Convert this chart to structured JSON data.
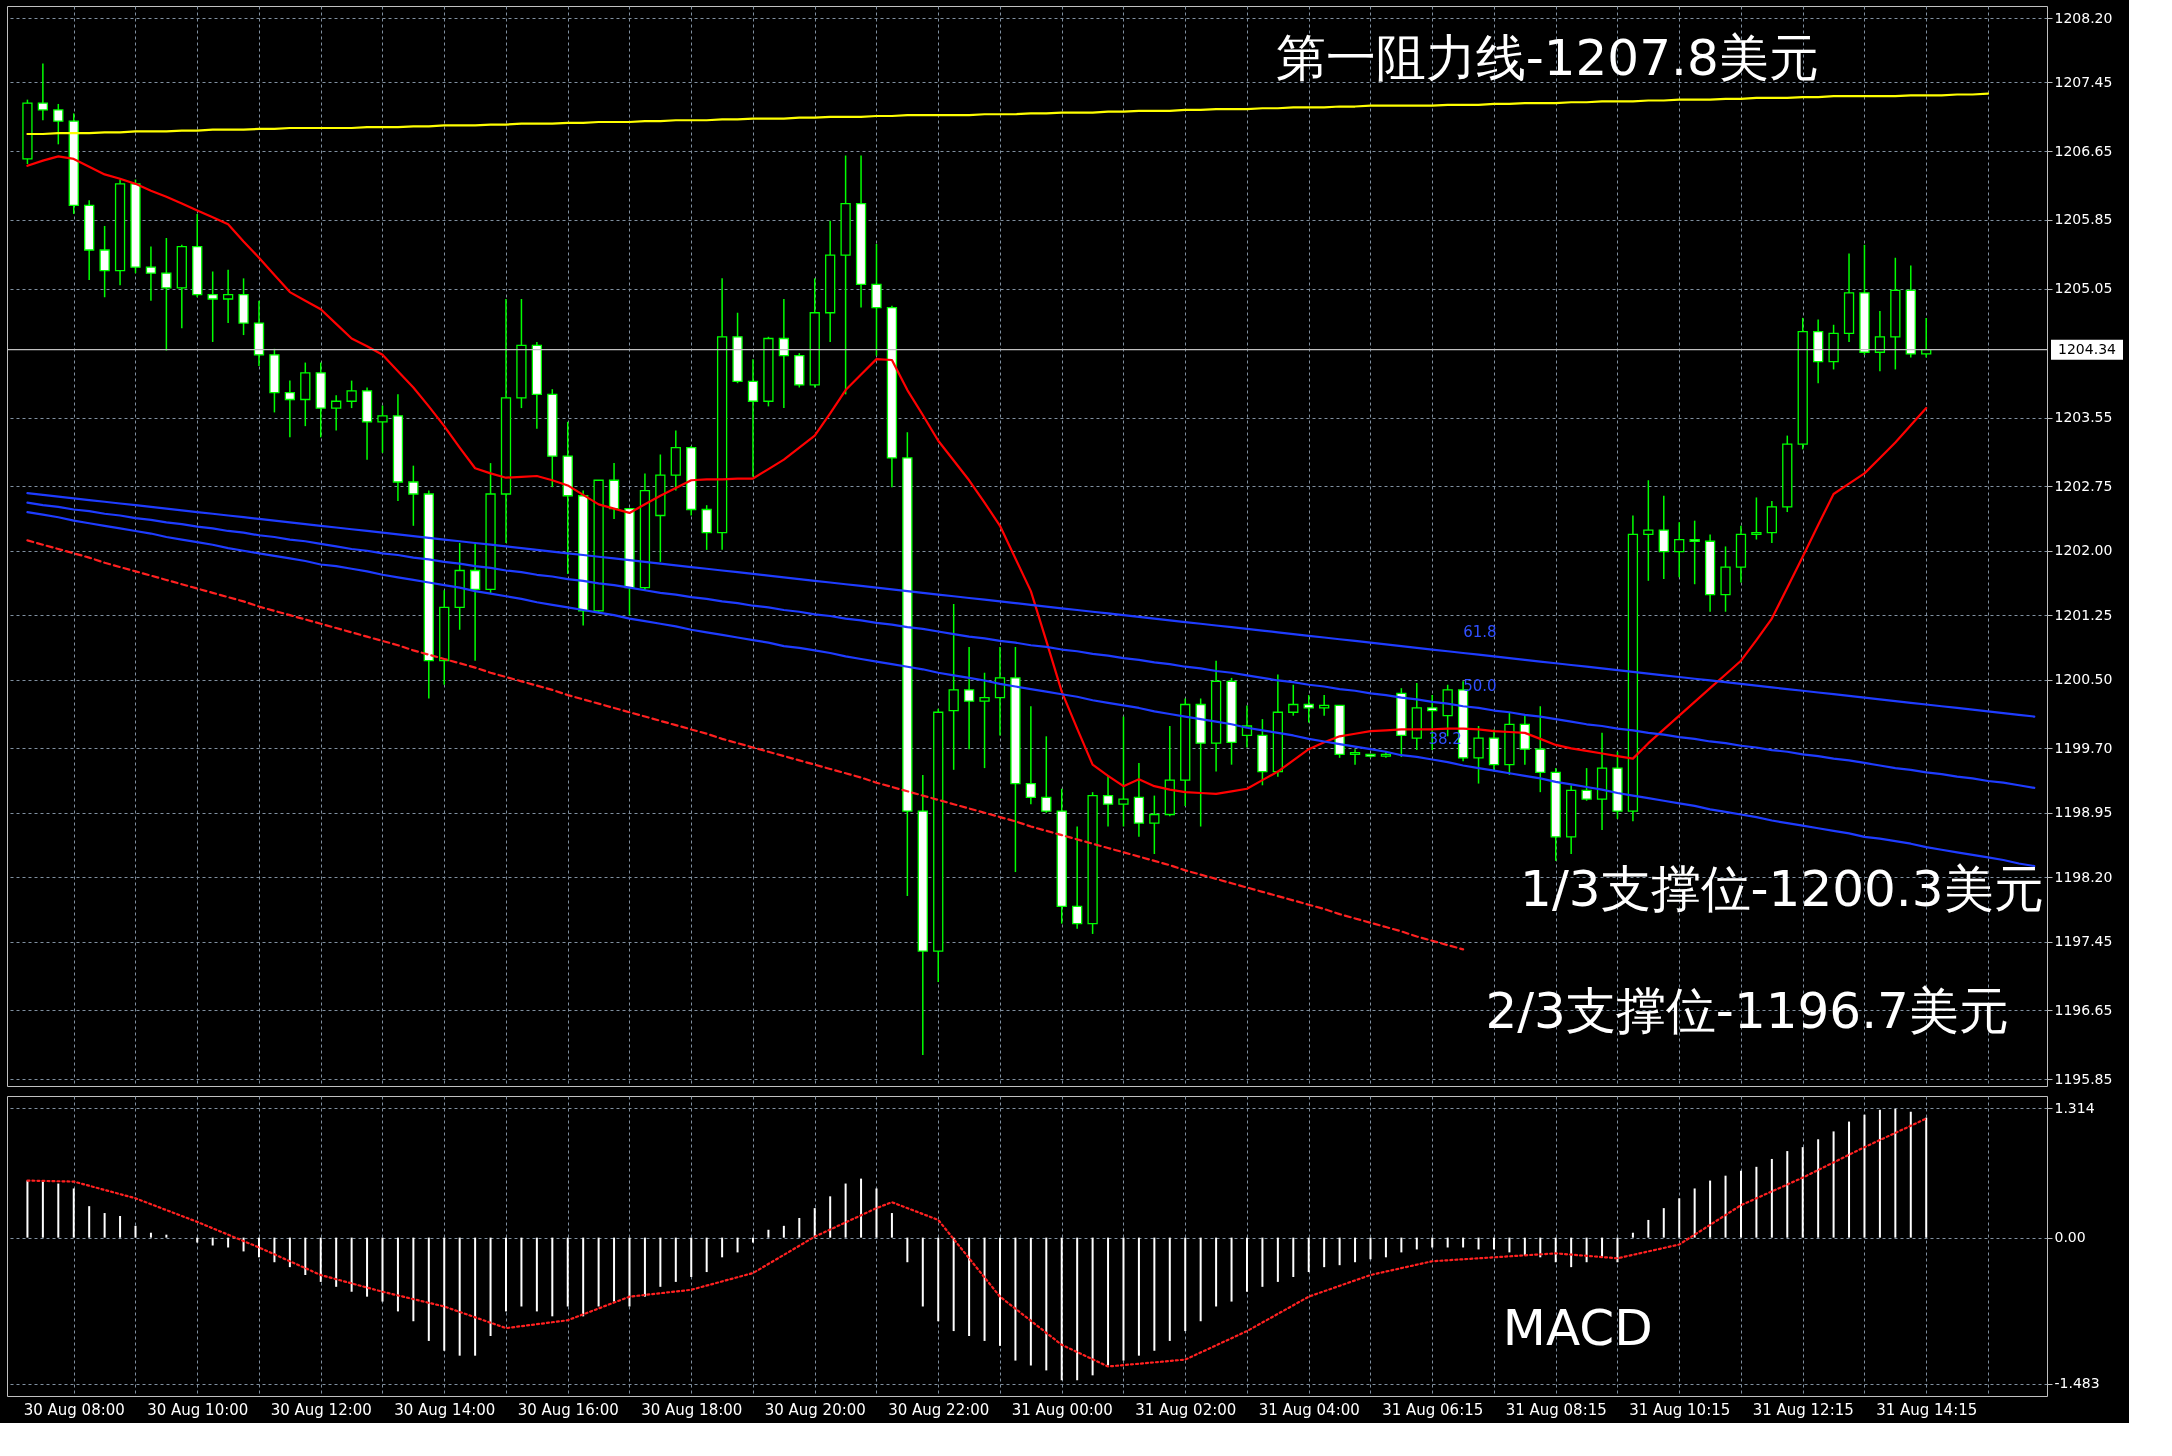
{
  "chart_data": [
    {
      "type": "candlestick",
      "categories": [
        null,
        null,
        null,
        null,
        null,
        null,
        null,
        null,
        null,
        null,
        null,
        null,
        null,
        null,
        null,
        null,
        null,
        null,
        null,
        null,
        null,
        null,
        null,
        null,
        null,
        null,
        null,
        null,
        null,
        null,
        null,
        null,
        null,
        null,
        null,
        null,
        null,
        null,
        null,
        null,
        null,
        null,
        null,
        null,
        null,
        null,
        null,
        null,
        null,
        null,
        null,
        null,
        null,
        null,
        null,
        null,
        null,
        null,
        null,
        null,
        null,
        null,
        null,
        null,
        null,
        null,
        null,
        null,
        null,
        null,
        null,
        null,
        null,
        null,
        null,
        null,
        null,
        null,
        null,
        null,
        null,
        null,
        null,
        null,
        null,
        null,
        null,
        null,
        null,
        null,
        null,
        null,
        null,
        null,
        null,
        null,
        null,
        null,
        null,
        null,
        null,
        null,
        null,
        null,
        null,
        null,
        null,
        null,
        null,
        null,
        null,
        null,
        null,
        null,
        null,
        null,
        null,
        null,
        null,
        null,
        null,
        null,
        null,
        null,
        null,
        null,
        null,
        null,
        null,
        null,
        null
      ],
      "ohlc": [
        [
          1206.56,
          1207.25,
          1206.5,
          1207.21
        ],
        [
          1207.21,
          1207.67,
          1207.01,
          1207.13
        ],
        [
          1207.13,
          1207.2,
          1206.73,
          1207.0
        ],
        [
          1207.0,
          1207.09,
          1205.92,
          1206.02
        ],
        [
          1206.02,
          1206.08,
          1205.15,
          1205.5
        ],
        [
          1205.5,
          1205.78,
          1204.95,
          1205.26
        ],
        [
          1205.26,
          1206.32,
          1205.09,
          1206.27
        ],
        [
          1206.27,
          1206.32,
          1205.23,
          1205.3
        ],
        [
          1205.3,
          1205.54,
          1204.91,
          1205.23
        ],
        [
          1205.23,
          1205.64,
          1204.33,
          1205.06
        ],
        [
          1205.06,
          1205.56,
          1204.59,
          1205.54
        ],
        [
          1205.54,
          1205.92,
          1204.95,
          1204.98
        ],
        [
          1204.98,
          1205.25,
          1204.43,
          1204.93
        ],
        [
          1204.93,
          1205.27,
          1204.65,
          1204.98
        ],
        [
          1204.98,
          1205.17,
          1204.51,
          1204.65
        ],
        [
          1204.65,
          1204.91,
          1204.15,
          1204.28
        ],
        [
          1204.28,
          1204.35,
          1203.61,
          1203.84
        ],
        [
          1203.84,
          1203.98,
          1203.32,
          1203.76
        ],
        [
          1203.76,
          1204.19,
          1203.45,
          1204.07
        ],
        [
          1204.07,
          1204.19,
          1203.32,
          1203.66
        ],
        [
          1203.66,
          1203.81,
          1203.4,
          1203.74
        ],
        [
          1203.74,
          1203.98,
          1203.66,
          1203.86
        ],
        [
          1203.86,
          1203.9,
          1203.06,
          1203.5
        ],
        [
          1203.5,
          1203.69,
          1203.14,
          1203.57
        ],
        [
          1203.57,
          1203.82,
          1202.58,
          1202.8
        ],
        [
          1202.8,
          1202.99,
          1202.29,
          1202.66
        ],
        [
          1202.66,
          1202.7,
          1200.28,
          1200.72
        ],
        [
          1200.72,
          1201.54,
          1200.44,
          1201.34
        ],
        [
          1201.34,
          1202.09,
          1201.08,
          1201.77
        ],
        [
          1201.77,
          1202.08,
          1200.72,
          1201.55
        ],
        [
          1201.55,
          1203.02,
          1201.5,
          1202.66
        ],
        [
          1202.66,
          1204.93,
          1202.09,
          1203.78
        ],
        [
          1203.78,
          1204.93,
          1203.66,
          1204.39
        ],
        [
          1204.39,
          1204.43,
          1203.42,
          1203.82
        ],
        [
          1203.82,
          1203.88,
          1202.74,
          1203.1
        ],
        [
          1203.1,
          1203.5,
          1201.73,
          1202.64
        ],
        [
          1202.64,
          1202.7,
          1201.13,
          1201.3
        ],
        [
          1201.3,
          1202.82,
          1201.28,
          1202.82
        ],
        [
          1202.82,
          1203.02,
          1202.37,
          1202.49
        ],
        [
          1202.49,
          1202.49,
          1201.25,
          1201.57
        ],
        [
          1201.57,
          1202.9,
          1201.53,
          1202.7
        ],
        [
          1202.41,
          1203.12,
          1201.87,
          1202.88
        ],
        [
          1202.88,
          1203.4,
          1202.7,
          1203.2
        ],
        [
          1203.2,
          1203.22,
          1202.41,
          1202.48
        ],
        [
          1202.48,
          1202.53,
          1202.01,
          1202.21
        ],
        [
          1202.21,
          1205.17,
          1202.01,
          1204.49
        ],
        [
          1204.49,
          1204.77,
          1203.95,
          1203.97
        ],
        [
          1203.97,
          1204.23,
          1202.86,
          1203.74
        ],
        [
          1203.74,
          1204.49,
          1203.68,
          1204.47
        ],
        [
          1204.47,
          1204.93,
          1203.66,
          1204.27
        ],
        [
          1204.27,
          1204.3,
          1203.9,
          1203.93
        ],
        [
          1203.93,
          1205.17,
          1203.9,
          1204.77
        ],
        [
          1204.77,
          1205.84,
          1204.43,
          1205.44
        ],
        [
          1205.44,
          1206.6,
          1203.82,
          1206.04
        ],
        [
          1206.04,
          1206.6,
          1204.83,
          1205.1
        ],
        [
          1205.1,
          1205.57,
          1204.27,
          1204.83
        ],
        [
          1204.83,
          1204.85,
          1202.74,
          1203.08
        ],
        [
          1203.08,
          1203.38,
          1197.98,
          1198.97
        ],
        [
          1198.97,
          1199.39,
          1196.13,
          1197.34
        ],
        [
          1197.34,
          1200.16,
          1196.98,
          1200.12
        ],
        [
          1200.14,
          1201.38,
          1199.45,
          1200.38
        ],
        [
          1200.38,
          1200.88,
          1199.69,
          1200.25
        ],
        [
          1200.25,
          1200.58,
          1199.47,
          1200.29
        ],
        [
          1200.29,
          1200.88,
          1199.85,
          1200.52
        ],
        [
          1200.52,
          1200.88,
          1198.26,
          1199.29
        ],
        [
          1199.29,
          1200.19,
          1199.05,
          1199.13
        ],
        [
          1199.13,
          1199.84,
          1198.95,
          1198.97
        ],
        [
          1198.97,
          1199.23,
          1197.66,
          1197.86
        ],
        [
          1197.86,
          1198.79,
          1197.6,
          1197.66
        ],
        [
          1197.66,
          1199.19,
          1197.54,
          1199.15
        ],
        [
          1199.15,
          1199.39,
          1198.79,
          1199.05
        ],
        [
          1199.05,
          1200.07,
          1198.79,
          1199.11
        ],
        [
          1199.13,
          1199.53,
          1198.67,
          1198.83
        ],
        [
          1198.83,
          1199.15,
          1198.47,
          1198.93
        ],
        [
          1198.93,
          1199.96,
          1198.91,
          1199.33
        ],
        [
          1199.33,
          1200.28,
          1199.03,
          1200.21
        ],
        [
          1200.21,
          1200.28,
          1198.79,
          1199.76
        ],
        [
          1199.76,
          1200.72,
          1199.43,
          1200.48
        ],
        [
          1200.48,
          1200.52,
          1199.51,
          1199.77
        ],
        [
          1199.85,
          1200.2,
          1199.71,
          1199.96
        ],
        [
          1199.85,
          1200.04,
          1199.27,
          1199.43
        ],
        [
          1199.43,
          1200.56,
          1199.37,
          1200.12
        ],
        [
          1200.12,
          1200.44,
          1200.08,
          1200.21
        ],
        [
          1200.21,
          1200.32,
          1200.0,
          1200.17
        ],
        [
          1200.17,
          1200.32,
          1200.08,
          1200.2
        ],
        [
          1200.2,
          1200.2,
          1199.59,
          1199.63
        ],
        [
          1199.63,
          1199.69,
          1199.51,
          1199.65
        ],
        [
          1199.63,
          1199.63,
          1199.59,
          1199.61
        ],
        [
          1199.61,
          1199.66,
          1199.59,
          1199.63
        ],
        [
          1200.34,
          1200.4,
          1199.6,
          1199.85
        ],
        [
          1199.82,
          1200.46,
          1199.68,
          1200.17
        ],
        [
          1200.17,
          1200.32,
          1199.68,
          1200.14
        ],
        [
          1200.08,
          1200.44,
          1199.84,
          1200.38
        ],
        [
          1200.38,
          1200.48,
          1199.55,
          1199.59
        ],
        [
          1199.59,
          1199.96,
          1199.29,
          1199.82
        ],
        [
          1199.82,
          1199.92,
          1199.43,
          1199.51
        ],
        [
          1199.51,
          1200.12,
          1199.39,
          1199.98
        ],
        [
          1199.98,
          1200.09,
          1199.51,
          1199.69
        ],
        [
          1199.69,
          1200.19,
          1199.19,
          1199.42
        ],
        [
          1199.42,
          1199.47,
          1198.39,
          1198.67
        ],
        [
          1198.67,
          1199.27,
          1198.47,
          1199.21
        ],
        [
          1199.21,
          1199.47,
          1199.09,
          1199.11
        ],
        [
          1199.11,
          1199.88,
          1198.75,
          1199.47
        ],
        [
          1199.47,
          1199.66,
          1198.88,
          1198.97
        ],
        [
          1198.97,
          1202.41,
          1198.85,
          1202.19
        ],
        [
          1202.19,
          1202.82,
          1201.65,
          1202.24
        ],
        [
          1202.24,
          1202.64,
          1201.67,
          1201.99
        ],
        [
          1201.99,
          1202.33,
          1201.69,
          1202.13
        ],
        [
          1202.13,
          1202.35,
          1201.61,
          1202.11
        ],
        [
          1202.11,
          1202.19,
          1201.29,
          1201.49
        ],
        [
          1201.49,
          1202.05,
          1201.29,
          1201.81
        ],
        [
          1201.81,
          1202.29,
          1201.63,
          1202.19
        ],
        [
          1202.19,
          1202.62,
          1202.13,
          1202.21
        ],
        [
          1202.21,
          1202.58,
          1202.09,
          1202.51
        ],
        [
          1202.51,
          1203.34,
          1202.45,
          1203.24
        ],
        [
          1203.24,
          1204.71,
          1203.18,
          1204.55
        ],
        [
          1204.55,
          1204.69,
          1203.95,
          1204.2
        ],
        [
          1204.2,
          1204.63,
          1204.11,
          1204.53
        ],
        [
          1204.53,
          1205.46,
          1204.43,
          1205.0
        ],
        [
          1205.0,
          1205.56,
          1204.28,
          1204.31
        ],
        [
          1204.31,
          1204.79,
          1204.09,
          1204.49
        ],
        [
          1204.49,
          1205.41,
          1204.11,
          1205.03
        ],
        [
          1205.03,
          1205.32,
          1204.25,
          1204.29
        ],
        [
          1204.29,
          1204.71,
          1204.25,
          1204.34
        ],
        null,
        null,
        null,
        null,
        null,
        null,
        null
      ],
      "series": [
        {
          "type": "line",
          "color": "#ff0000",
          "values": [
            1206.48,
            1206.54,
            1206.59,
            1206.56,
            1206.47,
            1206.38,
            1206.33,
            1206.27,
            1206.19,
            1206.12,
            1206.04,
            1205.96,
            1205.88,
            1205.8,
            1205.6,
            1205.41,
            1205.21,
            1205.01,
            1204.91,
            1204.81,
            1204.64,
            1204.47,
            1204.38,
            1204.28,
            1204.09,
            1203.9,
            1203.68,
            1203.45,
            1203.2,
            1202.96,
            1202.9,
            1202.85,
            1202.86,
            1202.87,
            1202.82,
            1202.76,
            1202.65,
            1202.54,
            1202.49,
            1202.44,
            1202.54,
            1202.64,
            1202.73,
            1202.82,
            1202.83,
            1202.83,
            1202.84,
            1202.84,
            1202.95,
            1203.06,
            1203.2,
            1203.34,
            1203.6,
            1203.87,
            1204.05,
            1204.23,
            1204.22,
            1203.87,
            1203.58,
            1203.28,
            1203.05,
            1202.82,
            1202.56,
            1202.29,
            1201.91,
            1201.53,
            1200.95,
            1200.36,
            1199.93,
            1199.51,
            1199.38,
            1199.26,
            1199.34,
            1199.26,
            1199.22,
            1199.19,
            1199.18,
            1199.17,
            1199.2,
            1199.23,
            1199.33,
            1199.43,
            1199.56,
            1199.69,
            1199.77,
            1199.84,
            1199.87,
            1199.9,
            1199.91,
            1199.92,
            1199.92,
            1199.92,
            1199.93,
            1199.93,
            1199.92,
            1199.9,
            1199.89,
            1199.88,
            1199.81,
            1199.74,
            1199.7,
            1199.67,
            1199.64,
            1199.61,
            1199.58,
            1199.76,
            1199.92,
            1200.08,
            1200.24,
            1200.4,
            1200.56,
            1200.72,
            1200.96,
            1201.21,
            1201.57,
            1201.93,
            1202.3,
            1202.66,
            1202.78,
            1202.9,
            1203.08,
            1203.26,
            1203.46,
            1203.66,
            null,
            null,
            null,
            null,
            null,
            null,
            null
          ]
        },
        {
          "type": "line",
          "color": "#ffff00",
          "values": [
            1206.85,
            1206.85,
            1206.86,
            1206.86,
            1206.86,
            1206.87,
            1206.87,
            1206.88,
            1206.88,
            1206.88,
            1206.89,
            1206.89,
            1206.9,
            1206.9,
            1206.9,
            1206.91,
            1206.91,
            1206.92,
            1206.92,
            1206.92,
            1206.92,
            1206.92,
            1206.93,
            1206.93,
            1206.93,
            1206.94,
            1206.94,
            1206.95,
            1206.95,
            1206.95,
            1206.96,
            1206.96,
            1206.97,
            1206.97,
            1206.97,
            1206.98,
            1206.98,
            1206.99,
            1206.99,
            1206.99,
            1207.0,
            1207.0,
            1207.01,
            1207.01,
            1207.01,
            1207.02,
            1207.02,
            1207.03,
            1207.03,
            1207.03,
            1207.04,
            1207.04,
            1207.05,
            1207.05,
            1207.05,
            1207.06,
            1207.06,
            1207.07,
            1207.07,
            1207.07,
            1207.07,
            1207.07,
            1207.08,
            1207.08,
            1207.08,
            1207.09,
            1207.09,
            1207.1,
            1207.1,
            1207.1,
            1207.11,
            1207.11,
            1207.12,
            1207.12,
            1207.12,
            1207.13,
            1207.13,
            1207.14,
            1207.14,
            1207.14,
            1207.15,
            1207.15,
            1207.16,
            1207.16,
            1207.16,
            1207.17,
            1207.17,
            1207.18,
            1207.18,
            1207.18,
            1207.18,
            1207.18,
            1207.19,
            1207.19,
            1207.19,
            1207.2,
            1207.2,
            1207.21,
            1207.21,
            1207.21,
            1207.22,
            1207.22,
            1207.23,
            1207.23,
            1207.23,
            1207.24,
            1207.24,
            1207.25,
            1207.25,
            1207.25,
            1207.26,
            1207.26,
            1207.27,
            1207.27,
            1207.27,
            1207.28,
            1207.28,
            1207.29,
            1207.29,
            1207.29,
            1207.29,
            1207.29,
            1207.3,
            1207.3,
            1207.3,
            1207.31,
            1207.31,
            1207.32,
            null,
            null,
            null
          ]
        },
        {
          "type": "line",
          "color": "#1e3cff",
          "values": [
            1202.67,
            1202.65,
            1202.63,
            1202.61,
            1202.59,
            1202.57,
            1202.55,
            1202.53,
            1202.51,
            1202.49,
            1202.47,
            1202.45,
            1202.43,
            1202.41,
            1202.39,
            1202.37,
            1202.35,
            1202.33,
            1202.31,
            1202.29,
            1202.27,
            1202.25,
            1202.23,
            1202.21,
            1202.19,
            1202.17,
            1202.15,
            1202.13,
            1202.11,
            1202.09,
            1202.07,
            1202.05,
            1202.03,
            1202.01,
            1201.99,
            1201.97,
            1201.95,
            1201.93,
            1201.91,
            1201.89,
            1201.87,
            1201.85,
            1201.83,
            1201.81,
            1201.79,
            1201.77,
            1201.75,
            1201.73,
            1201.71,
            1201.69,
            1201.67,
            1201.65,
            1201.63,
            1201.61,
            1201.59,
            1201.57,
            1201.55,
            1201.53,
            1201.51,
            1201.49,
            1201.47,
            1201.45,
            1201.43,
            1201.41,
            1201.39,
            1201.37,
            1201.35,
            1201.33,
            1201.31,
            1201.29,
            1201.27,
            1201.25,
            1201.23,
            1201.21,
            1201.19,
            1201.17,
            1201.15,
            1201.13,
            1201.11,
            1201.09,
            1201.07,
            1201.05,
            1201.03,
            1201.01,
            1200.99,
            1200.97,
            1200.95,
            1200.93,
            1200.91,
            1200.89,
            1200.87,
            1200.85,
            1200.83,
            1200.81,
            1200.79,
            1200.77,
            1200.75,
            1200.73,
            1200.71,
            1200.69,
            1200.67,
            1200.65,
            1200.63,
            1200.61,
            1200.59,
            1200.57,
            1200.55,
            1200.53,
            1200.51,
            1200.49,
            1200.47,
            1200.45,
            1200.43,
            1200.41,
            1200.39,
            1200.37,
            1200.35,
            1200.33,
            1200.31,
            1200.29,
            1200.27,
            1200.25,
            1200.23,
            1200.21,
            1200.19,
            1200.17,
            1200.15,
            1200.13,
            1200.11,
            1200.09,
            1200.07
          ]
        },
        {
          "type": "line",
          "color": "#1e3cff",
          "values": [
            1202.56,
            1202.53,
            1202.51,
            1202.48,
            1202.46,
            1202.43,
            1202.41,
            1202.38,
            1202.36,
            1202.33,
            1202.31,
            1202.28,
            1202.26,
            1202.23,
            1202.21,
            1202.18,
            1202.16,
            1202.13,
            1202.11,
            1202.08,
            1202.05,
            1202.02,
            1202.0,
            1201.97,
            1201.95,
            1201.92,
            1201.9,
            1201.87,
            1201.85,
            1201.82,
            1201.8,
            1201.77,
            1201.75,
            1201.72,
            1201.7,
            1201.67,
            1201.65,
            1201.62,
            1201.6,
            1201.57,
            1201.54,
            1201.51,
            1201.49,
            1201.46,
            1201.44,
            1201.41,
            1201.39,
            1201.36,
            1201.34,
            1201.31,
            1201.29,
            1201.26,
            1201.24,
            1201.21,
            1201.19,
            1201.16,
            1201.14,
            1201.11,
            1201.09,
            1201.06,
            1201.03,
            1201.0,
            1200.98,
            1200.95,
            1200.93,
            1200.9,
            1200.88,
            1200.85,
            1200.83,
            1200.8,
            1200.78,
            1200.75,
            1200.73,
            1200.7,
            1200.68,
            1200.65,
            1200.63,
            1200.6,
            1200.58,
            1200.55,
            1200.52,
            1200.49,
            1200.47,
            1200.44,
            1200.42,
            1200.39,
            1200.37,
            1200.34,
            1200.32,
            1200.29,
            1200.27,
            1200.24,
            1200.22,
            1200.19,
            1200.17,
            1200.14,
            1200.12,
            1200.09,
            1200.07,
            1200.04,
            1200.01,
            1199.98,
            1199.96,
            1199.93,
            1199.91,
            1199.88,
            1199.86,
            1199.83,
            1199.81,
            1199.78,
            1199.76,
            1199.73,
            1199.71,
            1199.68,
            1199.66,
            1199.63,
            1199.61,
            1199.58,
            1199.56,
            1199.53,
            1199.5,
            1199.47,
            1199.45,
            1199.42,
            1199.4,
            1199.37,
            1199.35,
            1199.32,
            1199.3,
            1199.27,
            1199.24
          ]
        },
        {
          "type": "line",
          "color": "#1e3cff",
          "values": [
            1202.45,
            1202.42,
            1202.39,
            1202.35,
            1202.32,
            1202.29,
            1202.26,
            1202.23,
            1202.2,
            1202.16,
            1202.13,
            1202.1,
            1202.07,
            1202.03,
            1202.0,
            1201.97,
            1201.94,
            1201.91,
            1201.88,
            1201.84,
            1201.82,
            1201.79,
            1201.76,
            1201.72,
            1201.69,
            1201.66,
            1201.63,
            1201.6,
            1201.57,
            1201.53,
            1201.5,
            1201.47,
            1201.44,
            1201.4,
            1201.37,
            1201.34,
            1201.31,
            1201.28,
            1201.25,
            1201.21,
            1201.18,
            1201.15,
            1201.12,
            1201.08,
            1201.05,
            1201.02,
            1200.99,
            1200.96,
            1200.93,
            1200.89,
            1200.87,
            1200.84,
            1200.81,
            1200.77,
            1200.74,
            1200.71,
            1200.68,
            1200.65,
            1200.62,
            1200.58,
            1200.55,
            1200.52,
            1200.49,
            1200.45,
            1200.42,
            1200.39,
            1200.36,
            1200.33,
            1200.3,
            1200.26,
            1200.23,
            1200.2,
            1200.17,
            1200.13,
            1200.1,
            1200.07,
            1200.04,
            1200.01,
            1199.98,
            1199.94,
            1199.91,
            1199.88,
            1199.85,
            1199.81,
            1199.78,
            1199.75,
            1199.72,
            1199.69,
            1199.66,
            1199.62,
            1199.6,
            1199.57,
            1199.54,
            1199.5,
            1199.47,
            1199.44,
            1199.41,
            1199.38,
            1199.35,
            1199.31,
            1199.28,
            1199.25,
            1199.22,
            1199.18,
            1199.15,
            1199.12,
            1199.09,
            1199.06,
            1199.03,
            1198.99,
            1198.96,
            1198.93,
            1198.9,
            1198.86,
            1198.83,
            1198.8,
            1198.77,
            1198.74,
            1198.71,
            1198.67,
            1198.65,
            1198.62,
            1198.59,
            1198.55,
            1198.52,
            1198.49,
            1198.46,
            1198.43,
            1198.4,
            1198.36,
            1198.33
          ]
        },
        {
          "type": "line",
          "color": "#ff2020",
          "line_style": "dashed",
          "values": [
            1202.12,
            1202.07,
            1202.02,
            1201.97,
            1201.92,
            1201.86,
            1201.81,
            1201.76,
            1201.71,
            1201.66,
            1201.61,
            1201.56,
            1201.51,
            1201.46,
            1201.41,
            1201.35,
            1201.3,
            1201.25,
            1201.2,
            1201.15,
            1201.1,
            1201.05,
            1201.0,
            1200.95,
            1200.9,
            1200.84,
            1200.79,
            1200.74,
            1200.69,
            1200.64,
            1200.58,
            1200.53,
            1200.48,
            1200.43,
            1200.38,
            1200.32,
            1200.27,
            1200.22,
            1200.17,
            1200.12,
            1200.07,
            1200.02,
            1199.97,
            1199.92,
            1199.87,
            1199.81,
            1199.76,
            1199.71,
            1199.66,
            1199.61,
            1199.56,
            1199.51,
            1199.46,
            1199.41,
            1199.36,
            1199.3,
            1199.25,
            1199.2,
            1199.15,
            1199.1,
            1199.05,
            1199.0,
            1198.95,
            1198.9,
            1198.85,
            1198.79,
            1198.74,
            1198.69,
            1198.64,
            1198.59,
            1198.54,
            1198.49,
            1198.44,
            1198.39,
            1198.34,
            1198.28,
            1198.23,
            1198.18,
            1198.13,
            1198.08,
            1198.03,
            1197.98,
            1197.93,
            1197.88,
            1197.83,
            1197.77,
            1197.72,
            1197.67,
            1197.62,
            1197.57,
            1197.51,
            1197.46,
            1197.41,
            1197.36,
            null,
            null,
            null,
            null,
            null,
            null,
            null,
            null,
            null,
            null,
            null,
            null,
            null,
            null,
            null,
            null,
            null,
            null,
            null,
            null,
            null,
            null,
            null,
            null,
            null,
            null,
            null,
            null,
            null,
            null,
            null,
            null,
            null,
            null,
            null,
            null,
            null
          ]
        }
      ],
      "ylim": [
        1195.77,
        1208.34
      ],
      "yticks": [
        {
          "value": 1208.2,
          "label": "1208.20"
        },
        {
          "value": 1207.45,
          "label": "1207.45"
        },
        {
          "value": 1206.65,
          "label": "1206.65"
        },
        {
          "value": 1205.85,
          "label": "1205.85"
        },
        {
          "value": 1205.05,
          "label": "1205.05"
        },
        {
          "value": 1203.55,
          "label": "1203.55"
        },
        {
          "value": 1202.75,
          "label": "1202.75"
        },
        {
          "value": 1202.0,
          "label": "1202.00"
        },
        {
          "value": 1201.25,
          "label": "1201.25"
        },
        {
          "value": 1200.5,
          "label": "1200.50"
        },
        {
          "value": 1199.7,
          "label": "1199.70"
        },
        {
          "value": 1198.95,
          "label": "1198.95"
        },
        {
          "value": 1198.2,
          "label": "1198.20"
        },
        {
          "value": 1197.45,
          "label": "1197.45"
        },
        {
          "value": 1196.65,
          "label": "1196.65"
        },
        {
          "value": 1195.85,
          "label": "1195.85"
        }
      ],
      "ref_lines": [
        {
          "axis": "y",
          "value": 1204.34,
          "label": "1204.34",
          "color": "#c0c0c0"
        }
      ],
      "annotations": [
        "第一阻力线-1207.8美元",
        "1/3支撑位-1200.3美元",
        "2/3支撑位-1196.7美元",
        "61.8",
        "50.0",
        "38.2"
      ],
      "grid": true
    },
    {
      "type": "bar",
      "categories": [
        null,
        null,
        null,
        "30 Aug 08:00",
        null,
        null,
        null,
        null,
        null,
        null,
        null,
        "30 Aug 10:00",
        null,
        null,
        null,
        null,
        null,
        null,
        null,
        "30 Aug 12:00",
        null,
        null,
        null,
        null,
        null,
        null,
        null,
        "30 Aug 14:00",
        null,
        null,
        null,
        null,
        null,
        null,
        null,
        "30 Aug 16:00",
        null,
        null,
        null,
        null,
        null,
        null,
        null,
        "30 Aug 18:00",
        null,
        null,
        null,
        null,
        null,
        null,
        null,
        "30 Aug 20:00",
        null,
        null,
        null,
        null,
        null,
        null,
        null,
        "30 Aug 22:00",
        null,
        null,
        null,
        null,
        null,
        null,
        null,
        "31 Aug 00:00",
        null,
        null,
        null,
        null,
        null,
        null,
        null,
        "31 Aug 02:00",
        null,
        null,
        null,
        null,
        null,
        null,
        null,
        "31 Aug 04:00",
        null,
        null,
        null,
        null,
        null,
        null,
        null,
        "31 Aug 06:15",
        null,
        null,
        null,
        null,
        null,
        null,
        null,
        "31 Aug 08:15",
        null,
        null,
        null,
        null,
        null,
        null,
        null,
        "31 Aug 10:15",
        null,
        null,
        null,
        null,
        null,
        null,
        null,
        "31 Aug 12:15",
        null,
        null,
        null,
        null,
        null,
        null,
        null,
        "31 Aug 14:15",
        null,
        null,
        null,
        null,
        null,
        null,
        null
      ],
      "series": [
        {
          "type": "bar",
          "color": "#ffffff",
          "values": [
            0.58,
            0.58,
            0.55,
            0.5,
            0.32,
            0.25,
            0.22,
            0.12,
            0.05,
            0.03,
            0.0,
            -0.05,
            -0.08,
            -0.1,
            -0.14,
            -0.2,
            -0.25,
            -0.3,
            -0.38,
            -0.45,
            -0.5,
            -0.55,
            -0.6,
            -0.65,
            -0.75,
            -0.85,
            -1.05,
            -1.15,
            -1.2,
            -1.2,
            -1.0,
            -0.75,
            -0.7,
            -0.75,
            -0.8,
            -0.7,
            -0.8,
            -0.7,
            -0.65,
            -0.7,
            -0.6,
            -0.5,
            -0.45,
            -0.4,
            -0.35,
            -0.2,
            -0.15,
            -0.05,
            0.08,
            0.12,
            0.2,
            0.3,
            0.42,
            0.55,
            0.6,
            0.5,
            0.25,
            -0.25,
            -0.7,
            -0.85,
            -0.95,
            -1.0,
            -1.05,
            -1.1,
            -1.25,
            -1.3,
            -1.35,
            -1.45,
            -1.45,
            -1.4,
            -1.3,
            -1.25,
            -1.2,
            -1.15,
            -1.05,
            -0.95,
            -0.85,
            -0.7,
            -0.65,
            -0.55,
            -0.5,
            -0.45,
            -0.4,
            -0.35,
            -0.3,
            -0.28,
            -0.25,
            -0.22,
            -0.2,
            -0.15,
            -0.12,
            -0.1,
            -0.1,
            -0.1,
            -0.12,
            -0.12,
            -0.15,
            -0.18,
            -0.2,
            -0.25,
            -0.3,
            -0.25,
            -0.2,
            -0.25,
            0.05,
            0.18,
            0.3,
            0.4,
            0.5,
            0.58,
            0.63,
            0.68,
            0.72,
            0.8,
            0.88,
            0.92,
            1.0,
            1.08,
            1.18,
            1.25,
            1.3,
            1.31,
            1.28,
            1.22,
            null,
            null,
            null,
            null,
            null,
            null,
            null
          ]
        },
        {
          "type": "line",
          "color": "#ff2020",
          "line_style": "dotted",
          "values": [
            0.58,
            null,
            null,
            0.57,
            null,
            null,
            null,
            0.4,
            null,
            null,
            null,
            0.16,
            null,
            null,
            null,
            -0.1,
            null,
            null,
            null,
            -0.38,
            null,
            null,
            null,
            -0.55,
            null,
            null,
            null,
            -0.7,
            null,
            null,
            null,
            -0.92,
            null,
            null,
            null,
            -0.84,
            null,
            null,
            null,
            -0.6,
            null,
            null,
            null,
            -0.53,
            null,
            null,
            null,
            -0.36,
            null,
            null,
            null,
            0.01,
            null,
            null,
            null,
            0.3,
            0.36,
            null,
            null,
            0.18,
            null,
            null,
            null,
            -0.6,
            null,
            null,
            null,
            -1.09,
            null,
            null,
            -1.31,
            null,
            null,
            null,
            null,
            -1.24,
            null,
            null,
            null,
            -0.95,
            null,
            null,
            null,
            -0.6,
            null,
            null,
            null,
            -0.38,
            null,
            null,
            null,
            -0.24,
            null,
            null,
            null,
            -0.2,
            null,
            null,
            null,
            -0.16,
            null,
            null,
            null,
            -0.21,
            null,
            null,
            null,
            -0.07,
            null,
            null,
            null,
            0.33,
            null,
            null,
            null,
            0.61,
            null,
            null,
            null,
            0.92,
            null,
            null,
            null,
            1.21,
            null,
            null,
            null,
            null,
            null,
            null,
            null
          ]
        }
      ],
      "ylim": [
        -1.61,
        1.44
      ],
      "yticks": [
        1.314,
        {
          "value": 0,
          "label": "0.00"
        },
        -1.483
      ],
      "annotations": [
        "MACD"
      ],
      "grid": true
    }
  ]
}
